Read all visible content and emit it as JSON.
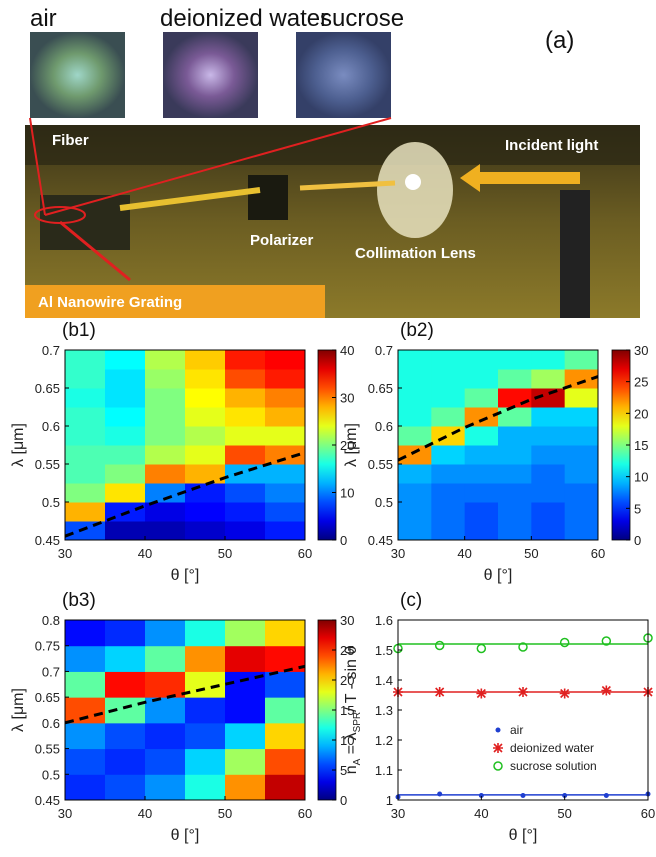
{
  "photo": {
    "sample_labels": [
      "air",
      "deionized water",
      "sucrose"
    ],
    "panel_label": "(a)",
    "labels": [
      "Fiber",
      "Incident light",
      "Polarizer",
      "Collimation Lens",
      "Al Nanowire Grating"
    ]
  },
  "chart_data": [
    {
      "type": "heatmap",
      "title": "(b1)",
      "xlabel": "θ [°]",
      "ylabel": "λ [μm]",
      "xbins": [
        30,
        35,
        40,
        45,
        50,
        55,
        60
      ],
      "ybins": [
        0.45,
        0.475,
        0.5,
        0.525,
        0.55,
        0.575,
        0.6,
        0.625,
        0.65,
        0.675,
        0.7
      ],
      "z": [
        [
          8,
          2,
          2,
          3,
          4,
          6
        ],
        [
          28,
          6,
          4,
          5,
          6,
          8
        ],
        [
          20,
          26,
          10,
          6,
          8,
          10
        ],
        [
          18,
          20,
          30,
          28,
          12,
          12
        ],
        [
          18,
          18,
          22,
          24,
          32,
          30
        ],
        [
          17,
          16,
          20,
          22,
          24,
          24
        ],
        [
          17,
          15,
          20,
          24,
          26,
          28
        ],
        [
          16,
          14,
          20,
          25,
          28,
          30
        ],
        [
          17,
          14,
          21,
          26,
          32,
          34
        ],
        [
          17,
          15,
          22,
          27,
          34,
          35
        ]
      ],
      "xlim": [
        30,
        60
      ],
      "xticks": [
        30,
        40,
        50,
        60
      ],
      "ylim": [
        0.45,
        0.7
      ],
      "yticks": [
        0.45,
        0.5,
        0.55,
        0.6,
        0.65,
        0.7
      ],
      "clim": [
        0,
        40
      ],
      "cticks": [
        0,
        10,
        20,
        30,
        40
      ],
      "curve": {
        "x": [
          30,
          40,
          50,
          60
        ],
        "y": [
          0.455,
          0.495,
          0.532,
          0.565
        ]
      }
    },
    {
      "type": "heatmap",
      "title": "(b2)",
      "xlabel": "θ [°]",
      "ylabel": "λ [μm]",
      "xbins": [
        30,
        35,
        40,
        45,
        50,
        55,
        60
      ],
      "ybins": [
        0.45,
        0.475,
        0.5,
        0.525,
        0.55,
        0.575,
        0.6,
        0.625,
        0.65,
        0.675,
        0.7
      ],
      "z": [
        [
          8,
          7,
          6,
          7,
          6,
          7
        ],
        [
          8,
          7,
          6,
          7,
          6,
          7
        ],
        [
          8,
          7,
          7,
          7,
          7,
          7
        ],
        [
          9,
          8,
          8,
          8,
          7,
          8
        ],
        [
          22,
          10,
          9,
          9,
          8,
          8
        ],
        [
          14,
          20,
          12,
          9,
          9,
          9
        ],
        [
          12,
          14,
          22,
          14,
          10,
          10
        ],
        [
          12,
          12,
          14,
          26,
          28,
          18
        ],
        [
          12,
          12,
          12,
          14,
          16,
          22
        ],
        [
          12,
          12,
          12,
          12,
          12,
          14
        ]
      ],
      "xlim": [
        30,
        60
      ],
      "xticks": [
        30,
        40,
        50,
        60
      ],
      "ylim": [
        0.45,
        0.7
      ],
      "yticks": [
        0.45,
        0.5,
        0.55,
        0.6,
        0.65,
        0.7
      ],
      "clim": [
        0,
        30
      ],
      "cticks": [
        0,
        5,
        10,
        15,
        20,
        25,
        30
      ],
      "curve": {
        "x": [
          30,
          40,
          50,
          60
        ],
        "y": [
          0.555,
          0.598,
          0.635,
          0.665
        ]
      }
    },
    {
      "type": "heatmap",
      "title": "(b3)",
      "xlabel": "θ [°]",
      "ylabel": "λ [μm]",
      "xbins": [
        30,
        35,
        40,
        45,
        50,
        55,
        60
      ],
      "ybins": [
        0.45,
        0.5,
        0.55,
        0.6,
        0.65,
        0.7,
        0.75,
        0.8
      ],
      "z": [
        [
          5,
          6,
          8,
          12,
          22,
          28
        ],
        [
          6,
          5,
          6,
          10,
          16,
          24
        ],
        [
          8,
          6,
          5,
          6,
          10,
          20
        ],
        [
          24,
          14,
          8,
          5,
          4,
          14
        ],
        [
          14,
          26,
          25,
          18,
          4,
          6
        ],
        [
          8,
          10,
          14,
          22,
          27,
          26
        ],
        [
          4,
          5,
          8,
          12,
          16,
          20
        ]
      ],
      "xlim": [
        30,
        60
      ],
      "xticks": [
        30,
        40,
        50,
        60
      ],
      "ylim": [
        0.45,
        0.8
      ],
      "yticks": [
        0.45,
        0.5,
        0.55,
        0.6,
        0.65,
        0.7,
        0.75,
        0.8
      ],
      "clim": [
        0,
        30
      ],
      "cticks": [
        0,
        5,
        10,
        15,
        20,
        25,
        30
      ],
      "curve": {
        "x": [
          30,
          40,
          50,
          60
        ],
        "y": [
          0.6,
          0.64,
          0.675,
          0.71
        ]
      }
    },
    {
      "type": "scatter",
      "title": "(c)",
      "xlabel": "θ [°]",
      "ylabel_parts": [
        "n",
        "A",
        " = λ",
        "SPR",
        "/ T - sin θ"
      ],
      "x": [
        30,
        35,
        40,
        45,
        50,
        55,
        60
      ],
      "series": [
        {
          "name": "air",
          "color": "#1f3fd0",
          "marker": "dot",
          "values": [
            1.01,
            1.02,
            1.015,
            1.015,
            1.015,
            1.015,
            1.02
          ],
          "fit": 1.017
        },
        {
          "name": "deionized water",
          "color": "#e02020",
          "marker": "star",
          "values": [
            1.36,
            1.36,
            1.355,
            1.36,
            1.355,
            1.365,
            1.36
          ],
          "fit": 1.36
        },
        {
          "name": "sucrose solution",
          "color": "#20c020",
          "marker": "circle",
          "values": [
            1.505,
            1.515,
            1.505,
            1.51,
            1.525,
            1.53,
            1.54
          ],
          "fit": 1.52
        }
      ],
      "xlim": [
        30,
        60
      ],
      "xticks": [
        30,
        40,
        50,
        60
      ],
      "ylim": [
        1,
        1.6
      ],
      "yticks": [
        1,
        1.1,
        1.2,
        1.3,
        1.4,
        1.5,
        1.6
      ]
    }
  ]
}
